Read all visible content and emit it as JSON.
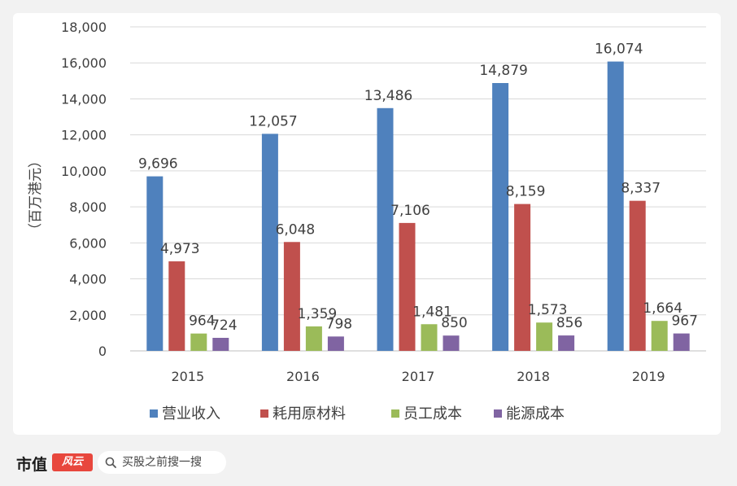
{
  "chart_data": {
    "type": "bar",
    "categories": [
      "2015",
      "2016",
      "2017",
      "2018",
      "2019"
    ],
    "series": [
      {
        "name": "营业收入",
        "color": "#4f81bd",
        "values": [
          9696,
          12057,
          13486,
          14879,
          16074
        ],
        "labels": [
          "9,696",
          "12,057",
          "13,486",
          "14,879",
          "16,074"
        ]
      },
      {
        "name": "耗用原材料",
        "color": "#c0504d",
        "values": [
          4973,
          6048,
          7106,
          8159,
          8337
        ],
        "labels": [
          "4,973",
          "6,048",
          "7,106",
          "8,159",
          "8,337"
        ]
      },
      {
        "name": "员工成本",
        "color": "#9bbb59",
        "values": [
          964,
          1359,
          1481,
          1573,
          1664
        ],
        "labels": [
          "964",
          "1,359",
          "1,481",
          "1,573",
          "1,664"
        ]
      },
      {
        "name": "能源成本",
        "color": "#8064a2",
        "values": [
          724,
          798,
          850,
          856,
          967
        ],
        "labels": [
          "724",
          "798",
          "850",
          "856",
          "967"
        ]
      }
    ],
    "ylabel": "（百万港元）",
    "ylim": [
      0,
      18000
    ],
    "yticks": [
      0,
      2000,
      4000,
      6000,
      8000,
      10000,
      12000,
      14000,
      16000,
      18000
    ],
    "ytick_labels": [
      "0",
      "2,000",
      "4,000",
      "6,000",
      "8,000",
      "10,000",
      "12,000",
      "14,000",
      "16,000",
      "18,000"
    ],
    "grid": true,
    "legend_position": "bottom"
  },
  "footer": {
    "brand": "市值",
    "logo_text": "风云",
    "search_text": "买股之前搜一搜"
  }
}
